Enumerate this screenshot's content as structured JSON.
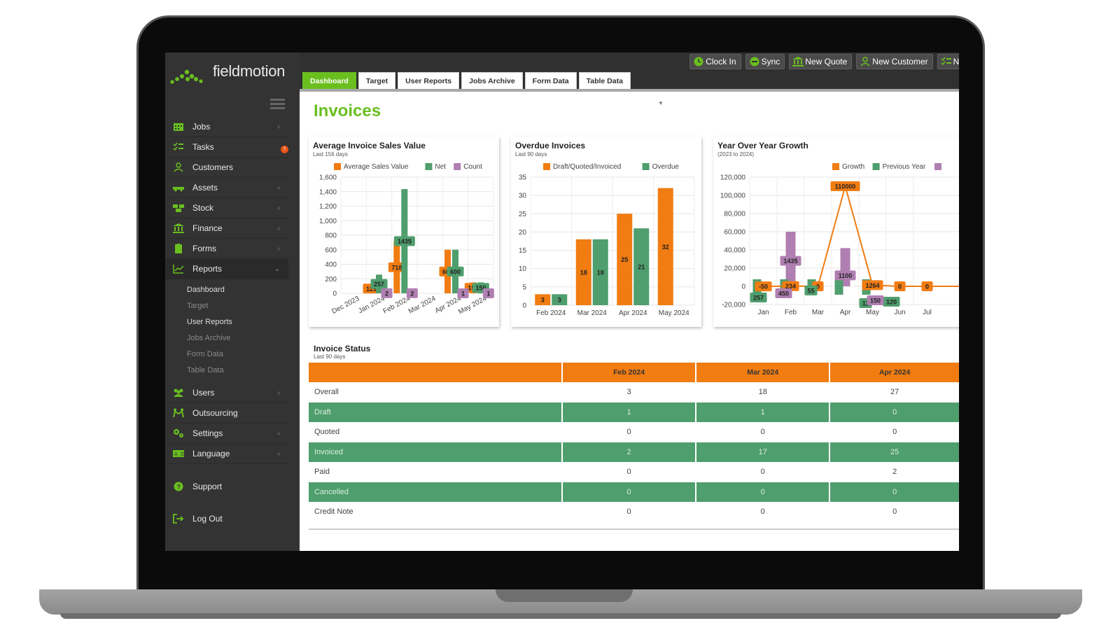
{
  "app": {
    "brand": "fieldmotion",
    "page_title": "Invoices"
  },
  "sidebar": {
    "items": [
      {
        "label": "Jobs",
        "icon": "calendar-icon",
        "chevron": true
      },
      {
        "label": "Tasks",
        "icon": "checklist-icon",
        "badge": "7"
      },
      {
        "label": "Customers",
        "icon": "user-icon"
      },
      {
        "label": "Assets",
        "icon": "truck-icon",
        "chevron": true
      },
      {
        "label": "Stock",
        "icon": "boxes-icon",
        "chevron": true
      },
      {
        "label": "Finance",
        "icon": "bank-icon",
        "chevron": true
      },
      {
        "label": "Forms",
        "icon": "clipboard-icon",
        "chevron": true
      },
      {
        "label": "Reports",
        "icon": "line-chart-icon",
        "chevron": true,
        "expanded": true
      }
    ],
    "report_subitems": [
      "Dashboard",
      "Target",
      "User Reports",
      "Jobs Archive",
      "Form Data",
      "Table Data"
    ],
    "items_after": [
      {
        "label": "Users",
        "icon": "users-icon",
        "chevron": true
      },
      {
        "label": "Outsourcing",
        "icon": "handshake-icon"
      },
      {
        "label": "Settings",
        "icon": "gears-icon",
        "chevron": true
      },
      {
        "label": "Language",
        "icon": "language-icon",
        "chevron": true
      }
    ],
    "support": "Support",
    "logout": "Log Out"
  },
  "topbar": {
    "actions": [
      "Clock In",
      "Sync",
      "New Quote",
      "New Customer",
      "Ne"
    ]
  },
  "tabs": [
    "Dashboard",
    "Target",
    "User Reports",
    "Jobs Archive",
    "Form Data",
    "Table Data"
  ],
  "charts": {
    "avg": {
      "title": "Average Invoice Sales Value",
      "sub": "Last 156 days",
      "legend": [
        "Average Sales Value",
        "Net",
        "Count"
      ]
    },
    "overdue": {
      "title": "Overdue Invoices",
      "sub": "Last 90 days",
      "legend": [
        "Draft/Quoted/Invoiced",
        "Overdue"
      ]
    },
    "yoy": {
      "title": "Year Over Year Growth",
      "sub": "(2023 to 2024)",
      "legend": [
        "Growth",
        "Previous Year"
      ]
    }
  },
  "colors": {
    "orange": "#f17c12",
    "green": "#4f9e6d",
    "purple": "#b07fb1",
    "brand_green": "#6abf1f"
  },
  "chart_data": [
    {
      "type": "bar",
      "title": "Average Invoice Sales Value",
      "categories": [
        "Dec 2023",
        "Jan 2024",
        "Feb 2024",
        "Mar 2024",
        "Apr 2024",
        "May 2024"
      ],
      "ylim": [
        0,
        1600
      ],
      "yticks": [
        "1,600",
        "1,400",
        "1,200",
        "1,000",
        "800",
        "600",
        "400",
        "200",
        "0"
      ],
      "series": [
        {
          "name": "Average Sales Value",
          "values": [
            0,
            129,
            718,
            0,
            600,
            150
          ]
        },
        {
          "name": "Net",
          "values": [
            0,
            257,
            1435,
            0,
            600,
            150
          ]
        },
        {
          "name": "Count",
          "values": [
            0,
            2,
            2,
            0,
            1,
            1
          ]
        }
      ]
    },
    {
      "type": "bar",
      "title": "Overdue Invoices",
      "categories": [
        "Feb 2024",
        "Mar 2024",
        "Apr 2024",
        "May 2024"
      ],
      "ylim": [
        0,
        35
      ],
      "yticks": [
        "35",
        "30",
        "25",
        "20",
        "15",
        "10",
        "5",
        "0"
      ],
      "series": [
        {
          "name": "Draft/Quoted/Invoiced",
          "values": [
            3,
            18,
            25,
            32
          ]
        },
        {
          "name": "Overdue",
          "values": [
            3,
            18,
            21,
            0
          ]
        }
      ]
    },
    {
      "type": "bar",
      "title": "Year Over Year Growth",
      "categories": [
        "Jan",
        "Feb",
        "Mar",
        "Apr",
        "May",
        "Jun",
        "Jul"
      ],
      "ylim": [
        -20000,
        120000
      ],
      "yticks": [
        "120,000",
        "100,000",
        "80,000",
        "60,000",
        "40,000",
        "20,000",
        "0",
        "-20,000"
      ],
      "series": [
        {
          "name": "Growth",
          "values": [
            -50,
            234,
            0,
            110000,
            1264,
            0,
            0
          ]
        },
        {
          "name": "Previous Year",
          "values": [
            257,
            55,
            0,
            11,
            120,
            0,
            0
          ]
        }
      ],
      "extra_labels": [
        "450",
        "1435",
        "1100",
        "150"
      ]
    }
  ],
  "invoice_status": {
    "title": "Invoice Status",
    "sub": "Last 90 days",
    "columns": [
      "",
      "Feb 2024",
      "Mar 2024",
      "Apr 2024"
    ],
    "rows": [
      {
        "label": "Overall",
        "values": [
          "3",
          "18",
          "27"
        ]
      },
      {
        "label": "Draft",
        "values": [
          "1",
          "1",
          "0"
        ]
      },
      {
        "label": "Quoted",
        "values": [
          "0",
          "0",
          "0"
        ]
      },
      {
        "label": "Invoiced",
        "values": [
          "2",
          "17",
          "25"
        ]
      },
      {
        "label": "Paid",
        "values": [
          "0",
          "0",
          "2"
        ]
      },
      {
        "label": "Cancelled",
        "values": [
          "0",
          "0",
          "0"
        ]
      },
      {
        "label": "Credit Note",
        "values": [
          "0",
          "0",
          "0"
        ]
      }
    ]
  }
}
